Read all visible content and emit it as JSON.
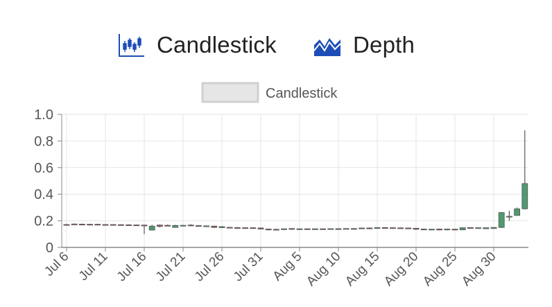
{
  "tabs": [
    {
      "label": "Candlestick",
      "icon": "candlestick-chart-icon"
    },
    {
      "label": "Depth",
      "icon": "depth-chart-icon"
    }
  ],
  "colors": {
    "accent": "#1e4db7",
    "up": "#4f9a6f",
    "down": "#a15656",
    "grid": "#e4e4e4",
    "axis": "#888888",
    "text": "#555555"
  },
  "chart_data": {
    "type": "candlestick",
    "legend": {
      "label": "Candlestick",
      "position": "top-center"
    },
    "grid": true,
    "ylim": [
      0,
      1.0
    ],
    "yticks": [
      "0",
      "0.2",
      "0.4",
      "0.6",
      "0.8",
      "1.0"
    ],
    "xticks": [
      "Jul 6",
      "Jul 11",
      "Jul 16",
      "Jul 21",
      "Jul 26",
      "Jul 31",
      "Aug 5",
      "Aug 10",
      "Aug 15",
      "Aug 20",
      "Aug 25",
      "Aug 30"
    ],
    "candles": [
      {
        "date": "Jul 6",
        "open": 0.172,
        "high": 0.176,
        "low": 0.168,
        "close": 0.17
      },
      {
        "date": "Jul 7",
        "open": 0.176,
        "high": 0.179,
        "low": 0.17,
        "close": 0.172
      },
      {
        "date": "Jul 8",
        "open": 0.175,
        "high": 0.178,
        "low": 0.17,
        "close": 0.172
      },
      {
        "date": "Jul 9",
        "open": 0.174,
        "high": 0.177,
        "low": 0.17,
        "close": 0.172
      },
      {
        "date": "Jul 10",
        "open": 0.174,
        "high": 0.176,
        "low": 0.17,
        "close": 0.171
      },
      {
        "date": "Jul 11",
        "open": 0.172,
        "high": 0.175,
        "low": 0.169,
        "close": 0.171
      },
      {
        "date": "Jul 12",
        "open": 0.172,
        "high": 0.174,
        "low": 0.169,
        "close": 0.17
      },
      {
        "date": "Jul 13",
        "open": 0.171,
        "high": 0.174,
        "low": 0.168,
        "close": 0.17
      },
      {
        "date": "Jul 14",
        "open": 0.17,
        "high": 0.173,
        "low": 0.167,
        "close": 0.168
      },
      {
        "date": "Jul 15",
        "open": 0.169,
        "high": 0.171,
        "low": 0.166,
        "close": 0.167
      },
      {
        "date": "Jul 16",
        "open": 0.168,
        "high": 0.17,
        "low": 0.1,
        "close": 0.165
      },
      {
        "date": "Jul 17",
        "open": 0.13,
        "high": 0.17,
        "low": 0.128,
        "close": 0.16
      },
      {
        "date": "Jul 18",
        "open": 0.168,
        "high": 0.172,
        "low": 0.15,
        "close": 0.158
      },
      {
        "date": "Jul 19",
        "open": 0.166,
        "high": 0.172,
        "low": 0.16,
        "close": 0.163
      },
      {
        "date": "Jul 20",
        "open": 0.15,
        "high": 0.17,
        "low": 0.148,
        "close": 0.165
      },
      {
        "date": "Jul 21",
        "open": 0.163,
        "high": 0.168,
        "low": 0.158,
        "close": 0.166
      },
      {
        "date": "Jul 22",
        "open": 0.168,
        "high": 0.175,
        "low": 0.16,
        "close": 0.163
      },
      {
        "date": "Jul 23",
        "open": 0.164,
        "high": 0.168,
        "low": 0.158,
        "close": 0.16
      },
      {
        "date": "Jul 24",
        "open": 0.161,
        "high": 0.165,
        "low": 0.156,
        "close": 0.162
      },
      {
        "date": "Jul 25",
        "open": 0.16,
        "high": 0.163,
        "low": 0.146,
        "close": 0.15
      },
      {
        "date": "Jul 26",
        "open": 0.148,
        "high": 0.16,
        "low": 0.146,
        "close": 0.156
      },
      {
        "date": "Jul 27",
        "open": 0.151,
        "high": 0.154,
        "low": 0.147,
        "close": 0.149
      },
      {
        "date": "Jul 28",
        "open": 0.149,
        "high": 0.152,
        "low": 0.146,
        "close": 0.148
      },
      {
        "date": "Jul 29",
        "open": 0.148,
        "high": 0.151,
        "low": 0.145,
        "close": 0.147
      },
      {
        "date": "Jul 30",
        "open": 0.148,
        "high": 0.15,
        "low": 0.145,
        "close": 0.146
      },
      {
        "date": "Jul 31",
        "open": 0.146,
        "high": 0.15,
        "low": 0.135,
        "close": 0.138
      },
      {
        "date": "Aug 1",
        "open": 0.138,
        "high": 0.141,
        "low": 0.128,
        "close": 0.132
      },
      {
        "date": "Aug 2",
        "open": 0.136,
        "high": 0.14,
        "low": 0.13,
        "close": 0.134
      },
      {
        "date": "Aug 3",
        "open": 0.134,
        "high": 0.142,
        "low": 0.132,
        "close": 0.14
      },
      {
        "date": "Aug 4",
        "open": 0.142,
        "high": 0.145,
        "low": 0.132,
        "close": 0.136
      },
      {
        "date": "Aug 5",
        "open": 0.137,
        "high": 0.142,
        "low": 0.133,
        "close": 0.14
      },
      {
        "date": "Aug 6",
        "open": 0.14,
        "high": 0.143,
        "low": 0.137,
        "close": 0.138
      },
      {
        "date": "Aug 7",
        "open": 0.139,
        "high": 0.142,
        "low": 0.136,
        "close": 0.14
      },
      {
        "date": "Aug 8",
        "open": 0.14,
        "high": 0.143,
        "low": 0.137,
        "close": 0.139
      },
      {
        "date": "Aug 9",
        "open": 0.139,
        "high": 0.142,
        "low": 0.136,
        "close": 0.141
      },
      {
        "date": "Aug 10",
        "open": 0.141,
        "high": 0.144,
        "low": 0.138,
        "close": 0.14
      },
      {
        "date": "Aug 11",
        "open": 0.14,
        "high": 0.143,
        "low": 0.137,
        "close": 0.142
      },
      {
        "date": "Aug 12",
        "open": 0.142,
        "high": 0.145,
        "low": 0.139,
        "close": 0.141
      },
      {
        "date": "Aug 13",
        "open": 0.141,
        "high": 0.149,
        "low": 0.139,
        "close": 0.146
      },
      {
        "date": "Aug 14",
        "open": 0.146,
        "high": 0.15,
        "low": 0.141,
        "close": 0.144
      },
      {
        "date": "Aug 15",
        "open": 0.145,
        "high": 0.152,
        "low": 0.142,
        "close": 0.149
      },
      {
        "date": "Aug 16",
        "open": 0.149,
        "high": 0.152,
        "low": 0.145,
        "close": 0.147
      },
      {
        "date": "Aug 17",
        "open": 0.148,
        "high": 0.151,
        "low": 0.144,
        "close": 0.146
      },
      {
        "date": "Aug 18",
        "open": 0.147,
        "high": 0.15,
        "low": 0.143,
        "close": 0.145
      },
      {
        "date": "Aug 19",
        "open": 0.146,
        "high": 0.149,
        "low": 0.142,
        "close": 0.143
      },
      {
        "date": "Aug 20",
        "open": 0.144,
        "high": 0.146,
        "low": 0.132,
        "close": 0.136
      },
      {
        "date": "Aug 21",
        "open": 0.138,
        "high": 0.141,
        "low": 0.133,
        "close": 0.135
      },
      {
        "date": "Aug 22",
        "open": 0.136,
        "high": 0.139,
        "low": 0.132,
        "close": 0.137
      },
      {
        "date": "Aug 23",
        "open": 0.138,
        "high": 0.141,
        "low": 0.128,
        "close": 0.131
      },
      {
        "date": "Aug 24",
        "open": 0.132,
        "high": 0.14,
        "low": 0.128,
        "close": 0.138
      },
      {
        "date": "Aug 25",
        "open": 0.137,
        "high": 0.14,
        "low": 0.128,
        "close": 0.131
      },
      {
        "date": "Aug 26",
        "open": 0.132,
        "high": 0.15,
        "low": 0.13,
        "close": 0.148
      },
      {
        "date": "Aug 27",
        "open": 0.149,
        "high": 0.152,
        "low": 0.142,
        "close": 0.145
      },
      {
        "date": "Aug 28",
        "open": 0.146,
        "high": 0.15,
        "low": 0.143,
        "close": 0.148
      },
      {
        "date": "Aug 29",
        "open": 0.14,
        "high": 0.15,
        "low": 0.138,
        "close": 0.148
      },
      {
        "date": "Aug 30",
        "open": 0.142,
        "high": 0.152,
        "low": 0.14,
        "close": 0.15
      },
      {
        "date": "Aug 31",
        "open": 0.15,
        "high": 0.265,
        "low": 0.145,
        "close": 0.262
      },
      {
        "date": "Sep 1",
        "open": 0.232,
        "high": 0.275,
        "low": 0.2,
        "close": 0.234
      },
      {
        "date": "Sep 2",
        "open": 0.24,
        "high": 0.3,
        "low": 0.238,
        "close": 0.29
      },
      {
        "date": "Sep 3",
        "open": 0.29,
        "high": 0.88,
        "low": 0.285,
        "close": 0.48
      }
    ]
  }
}
